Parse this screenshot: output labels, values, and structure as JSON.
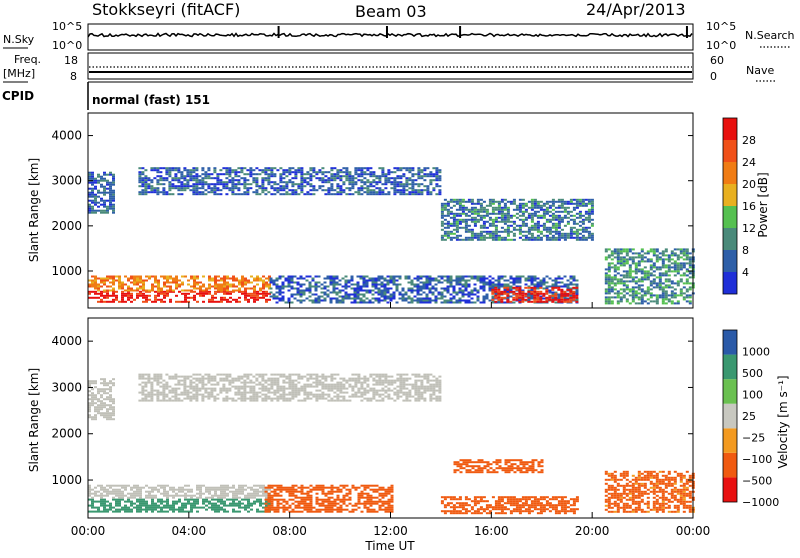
{
  "header": {
    "station": "Stokkseyri (fitACF)",
    "beam": "Beam 03",
    "date": "24/Apr/2013"
  },
  "side_labels": {
    "nsky": "N.Sky",
    "freq": "Freq.",
    "mhz": "[MHz]",
    "cpid": "CPID",
    "nsearch": "N.Search",
    "nave": "Nave"
  },
  "noise_panel": {
    "left_ticks": [
      "10^5",
      "10^0"
    ],
    "right_ticks": [
      "10^5",
      "10^0"
    ]
  },
  "freq_panel": {
    "left_ticks": [
      "18",
      "8"
    ],
    "right_ticks": [
      "60",
      "0"
    ]
  },
  "cpid_text": "normal (fast) 151",
  "colors": {
    "power": [
      "#1f2fd8",
      "#2e5fa8",
      "#4a8a7a",
      "#55c050",
      "#e8b020",
      "#f07c14",
      "#f05018",
      "#e8100e"
    ],
    "velocity": [
      "#e81010",
      "#f05a10",
      "#f39a20",
      "#c8c8c0",
      "#6ac050",
      "#3a9870",
      "#2a5aa8"
    ],
    "ground_scatter": "#c0c0b8"
  },
  "chart_data": [
    {
      "type": "heatmap",
      "title": "",
      "xlabel": "Time UT",
      "ylabel": "Slant Range [km]",
      "x_ticks": [
        "00:00",
        "04:00",
        "08:00",
        "12:00",
        "16:00",
        "20:00",
        "00:00"
      ],
      "y_ticks": [
        "4000",
        "3000",
        "2000",
        "1000"
      ],
      "xlim": [
        0,
        24
      ],
      "ylim": [
        180,
        4500
      ],
      "colorbar": {
        "label": "Power [dB]",
        "ticks": [
          "28",
          "24",
          "20",
          "16",
          "12",
          "8",
          "4"
        ],
        "range": [
          0,
          32
        ]
      },
      "regions": [
        {
          "t": [
            0.0,
            7.2
          ],
          "r": [
            300,
            560
          ],
          "power": 30
        },
        {
          "t": [
            0.0,
            7.2
          ],
          "r": [
            560,
            900
          ],
          "power": 22
        },
        {
          "t": [
            7.2,
            19.4
          ],
          "r": [
            300,
            900
          ],
          "power": 6
        },
        {
          "t": [
            16.0,
            19.4
          ],
          "r": [
            330,
            650
          ],
          "power": 29
        },
        {
          "t": [
            0.0,
            1.0
          ],
          "r": [
            2300,
            3200
          ],
          "power": 6
        },
        {
          "t": [
            2.0,
            14.0
          ],
          "r": [
            2700,
            3300
          ],
          "power": 6
        },
        {
          "t": [
            14.0,
            20.0
          ],
          "r": [
            1700,
            2600
          ],
          "power": 8
        },
        {
          "t": [
            20.5,
            24.0
          ],
          "r": [
            300,
            1500
          ],
          "power": 10
        }
      ]
    },
    {
      "type": "heatmap",
      "title": "",
      "xlabel": "Time UT",
      "ylabel": "Slant Range [km]",
      "x_ticks": [
        "00:00",
        "04:00",
        "08:00",
        "12:00",
        "16:00",
        "20:00",
        "00:00"
      ],
      "y_ticks": [
        "4000",
        "3000",
        "2000",
        "1000"
      ],
      "xlim": [
        0,
        24
      ],
      "ylim": [
        180,
        4500
      ],
      "colorbar": {
        "label": "Velocity [m s⁻¹]",
        "ticks": [
          "1000",
          "500",
          "100",
          "25",
          "−25",
          "−100",
          "−500",
          "−1000"
        ],
        "range": [
          -1000,
          1000
        ]
      },
      "regions": [
        {
          "t": [
            0.0,
            7.2
          ],
          "r": [
            300,
            600
          ],
          "velocity": 300
        },
        {
          "t": [
            0.0,
            7.2
          ],
          "r": [
            600,
            900
          ],
          "velocity": 20
        },
        {
          "t": [
            7.0,
            12.0
          ],
          "r": [
            300,
            900
          ],
          "velocity": -300
        },
        {
          "t": [
            14.0,
            19.4
          ],
          "r": [
            300,
            650
          ],
          "velocity": -300
        },
        {
          "t": [
            14.5,
            18.0
          ],
          "r": [
            1150,
            1450
          ],
          "velocity": -300
        },
        {
          "t": [
            0.0,
            1.0
          ],
          "r": [
            2300,
            3200
          ],
          "velocity": 0
        },
        {
          "t": [
            2.0,
            14.0
          ],
          "r": [
            2700,
            3300
          ],
          "velocity": 0
        },
        {
          "t": [
            20.5,
            24.0
          ],
          "r": [
            300,
            1200
          ],
          "velocity": -200
        }
      ]
    }
  ]
}
